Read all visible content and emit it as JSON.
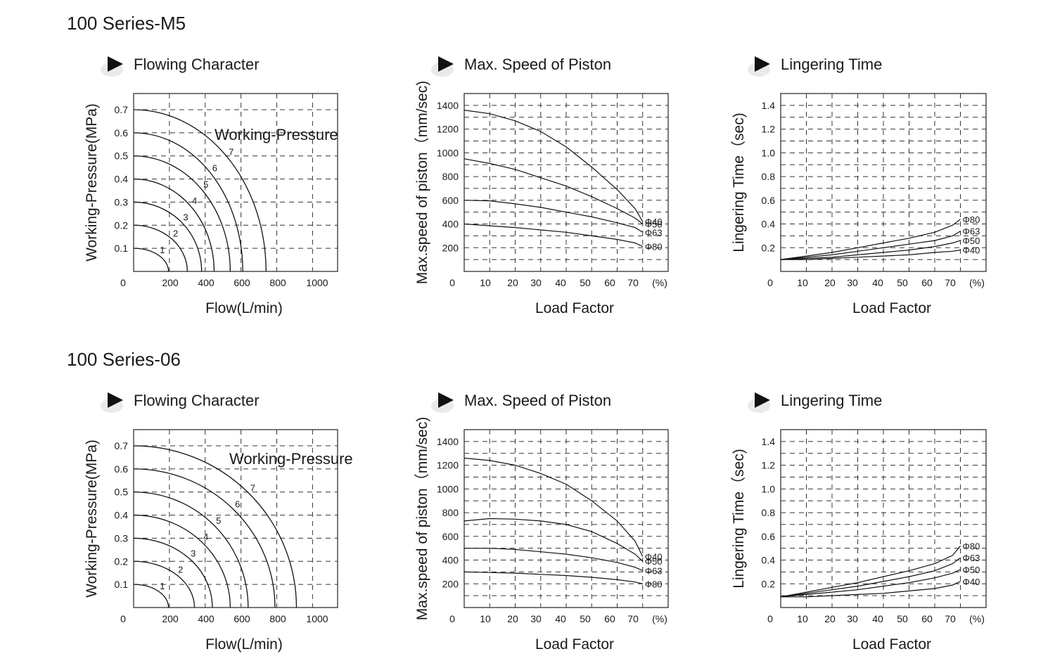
{
  "chart_data": [
    {
      "type": "line",
      "section": "100 Series-M5",
      "title": "Flowing Character",
      "xlabel": "Flow(L/min)",
      "ylabel": "Working-Pressure(MPa)",
      "annotation": "Working-Pressure",
      "xlim": [
        0,
        1140
      ],
      "ylim": [
        0,
        0.77
      ],
      "xticks": [
        "0",
        "200",
        "400",
        "600",
        "800",
        "1000"
      ],
      "yticks": [
        "0.1",
        "0.2",
        "0.3",
        "0.4",
        "0.5",
        "0.6",
        "0.7"
      ],
      "grid": true,
      "series": [
        {
          "name": "1",
          "pressure": 0.1,
          "max_flow": 195
        },
        {
          "name": "2",
          "pressure": 0.2,
          "max_flow": 300
        },
        {
          "name": "3",
          "pressure": 0.3,
          "max_flow": 380
        },
        {
          "name": "4",
          "pressure": 0.4,
          "max_flow": 450
        },
        {
          "name": "5",
          "pressure": 0.5,
          "max_flow": 540
        },
        {
          "name": "6",
          "pressure": 0.6,
          "max_flow": 610
        },
        {
          "name": "7",
          "pressure": 0.7,
          "max_flow": 740
        }
      ]
    },
    {
      "type": "line",
      "section": "",
      "title": "Max. Speed of Piston",
      "xlabel": "Load Factor",
      "ylabel": "Max.speed of piston（mm/sec)",
      "xlim": [
        0,
        80
      ],
      "ylim": [
        0,
        1500
      ],
      "xticks": [
        "0",
        "10",
        "20",
        "30",
        "40",
        "50",
        "60",
        "70",
        "(%)"
      ],
      "yticks": [
        "200",
        "400",
        "600",
        "800",
        "1000",
        "1200",
        "1400"
      ],
      "grid": true,
      "series": [
        {
          "name": "Φ40",
          "x": [
            0,
            10,
            20,
            30,
            40,
            50,
            60,
            67,
            70
          ],
          "y": [
            1360,
            1330,
            1270,
            1180,
            1050,
            880,
            690,
            530,
            420
          ]
        },
        {
          "name": "Φ50",
          "x": [
            0,
            10,
            20,
            30,
            40,
            50,
            60,
            67,
            70
          ],
          "y": [
            950,
            910,
            860,
            790,
            720,
            630,
            530,
            450,
            400
          ]
        },
        {
          "name": "Φ63",
          "x": [
            0,
            10,
            20,
            30,
            40,
            50,
            60,
            67,
            70
          ],
          "y": [
            600,
            595,
            570,
            540,
            500,
            460,
            410,
            370,
            330
          ]
        },
        {
          "name": "Φ80",
          "x": [
            0,
            10,
            20,
            30,
            40,
            50,
            60,
            67,
            70
          ],
          "y": [
            400,
            385,
            370,
            350,
            330,
            300,
            270,
            240,
            210
          ]
        }
      ]
    },
    {
      "type": "line",
      "section": "",
      "title": "Lingering Time",
      "xlabel": "Load Factor",
      "ylabel": "Lingering Time（sec)",
      "xlim": [
        0,
        80
      ],
      "ylim": [
        0,
        1.5
      ],
      "xticks": [
        "0",
        "10",
        "20",
        "30",
        "40",
        "50",
        "60",
        "70",
        "(%)"
      ],
      "yticks": [
        "0.2",
        "0.4",
        "0.6",
        "0.8",
        "1.0",
        "1.2",
        "1.4"
      ],
      "grid": true,
      "series": [
        {
          "name": "Φ80",
          "x": [
            0,
            10,
            20,
            30,
            40,
            50,
            60,
            67,
            70
          ],
          "y": [
            0.1,
            0.13,
            0.16,
            0.2,
            0.24,
            0.28,
            0.33,
            0.39,
            0.44
          ]
        },
        {
          "name": "Φ63",
          "x": [
            0,
            10,
            20,
            30,
            40,
            50,
            60,
            67,
            70
          ],
          "y": [
            0.1,
            0.12,
            0.14,
            0.17,
            0.2,
            0.23,
            0.26,
            0.3,
            0.34
          ]
        },
        {
          "name": "Φ50",
          "x": [
            0,
            10,
            20,
            30,
            40,
            50,
            60,
            67,
            70
          ],
          "y": [
            0.1,
            0.11,
            0.12,
            0.14,
            0.16,
            0.18,
            0.21,
            0.24,
            0.26
          ]
        },
        {
          "name": "Φ40",
          "x": [
            0,
            10,
            20,
            30,
            40,
            50,
            60,
            67,
            70
          ],
          "y": [
            0.1,
            0.1,
            0.11,
            0.12,
            0.13,
            0.14,
            0.16,
            0.17,
            0.18
          ]
        }
      ]
    },
    {
      "type": "line",
      "section": "100 Series-06",
      "title": "Flowing Character",
      "xlabel": "Flow(L/min)",
      "ylabel": "Working-Pressure(MPa)",
      "annotation": "Working-Pressure",
      "xlim": [
        0,
        1140
      ],
      "ylim": [
        0,
        0.77
      ],
      "xticks": [
        "0",
        "200",
        "400",
        "600",
        "800",
        "1000"
      ],
      "yticks": [
        "0.1",
        "0.2",
        "0.3",
        "0.4",
        "0.5",
        "0.6",
        "0.7"
      ],
      "grid": true,
      "series": [
        {
          "name": "1",
          "pressure": 0.1,
          "max_flow": 195
        },
        {
          "name": "2",
          "pressure": 0.2,
          "max_flow": 340
        },
        {
          "name": "3",
          "pressure": 0.3,
          "max_flow": 440
        },
        {
          "name": "4",
          "pressure": 0.4,
          "max_flow": 540
        },
        {
          "name": "5",
          "pressure": 0.5,
          "max_flow": 640
        },
        {
          "name": "6",
          "pressure": 0.6,
          "max_flow": 790
        },
        {
          "name": "7",
          "pressure": 0.7,
          "max_flow": 910
        }
      ]
    },
    {
      "type": "line",
      "section": "",
      "title": "Max. Speed of Piston",
      "xlabel": "Load Factor",
      "ylabel": "Max.speed of piston（mm/sec)",
      "xlim": [
        0,
        80
      ],
      "ylim": [
        0,
        1500
      ],
      "xticks": [
        "0",
        "10",
        "20",
        "30",
        "40",
        "50",
        "60",
        "70",
        "(%)"
      ],
      "yticks": [
        "200",
        "400",
        "600",
        "800",
        "1000",
        "1200",
        "1400"
      ],
      "grid": true,
      "series": [
        {
          "name": "Φ40",
          "x": [
            0,
            10,
            20,
            30,
            40,
            50,
            60,
            67,
            70
          ],
          "y": [
            1260,
            1240,
            1200,
            1130,
            1040,
            900,
            730,
            560,
            430
          ]
        },
        {
          "name": "Φ50",
          "x": [
            0,
            10,
            20,
            30,
            40,
            50,
            60,
            67,
            70
          ],
          "y": [
            730,
            750,
            745,
            730,
            700,
            640,
            540,
            450,
            390
          ]
        },
        {
          "name": "Φ63",
          "x": [
            0,
            10,
            20,
            30,
            40,
            50,
            60,
            67,
            70
          ],
          "y": [
            500,
            500,
            490,
            470,
            450,
            420,
            380,
            340,
            310
          ]
        },
        {
          "name": "Φ80",
          "x": [
            0,
            10,
            20,
            30,
            40,
            50,
            60,
            67,
            70
          ],
          "y": [
            300,
            295,
            290,
            280,
            270,
            255,
            235,
            215,
            200
          ]
        }
      ]
    },
    {
      "type": "line",
      "section": "",
      "title": "Lingering Time",
      "xlabel": "Load Factor",
      "ylabel": "Lingering Time（sec)",
      "xlim": [
        0,
        80
      ],
      "ylim": [
        0,
        1.5
      ],
      "xticks": [
        "0",
        "10",
        "20",
        "30",
        "40",
        "50",
        "60",
        "70",
        "(%)"
      ],
      "yticks": [
        "0.2",
        "0.4",
        "0.6",
        "0.8",
        "1.0",
        "1.2",
        "1.4"
      ],
      "grid": true,
      "series": [
        {
          "name": "Φ80",
          "x": [
            0,
            10,
            20,
            30,
            40,
            50,
            60,
            67,
            70
          ],
          "y": [
            0.09,
            0.13,
            0.17,
            0.21,
            0.26,
            0.31,
            0.37,
            0.44,
            0.52
          ]
        },
        {
          "name": "Φ63",
          "x": [
            0,
            10,
            20,
            30,
            40,
            50,
            60,
            67,
            70
          ],
          "y": [
            0.09,
            0.12,
            0.15,
            0.18,
            0.22,
            0.26,
            0.31,
            0.37,
            0.42
          ]
        },
        {
          "name": "Φ50",
          "x": [
            0,
            10,
            20,
            30,
            40,
            50,
            60,
            67,
            70
          ],
          "y": [
            0.09,
            0.11,
            0.13,
            0.15,
            0.18,
            0.21,
            0.25,
            0.29,
            0.32
          ]
        },
        {
          "name": "Φ40",
          "x": [
            0,
            10,
            20,
            30,
            40,
            50,
            60,
            67,
            70
          ],
          "y": [
            0.09,
            0.09,
            0.1,
            0.11,
            0.12,
            0.14,
            0.16,
            0.19,
            0.22
          ]
        }
      ]
    }
  ]
}
